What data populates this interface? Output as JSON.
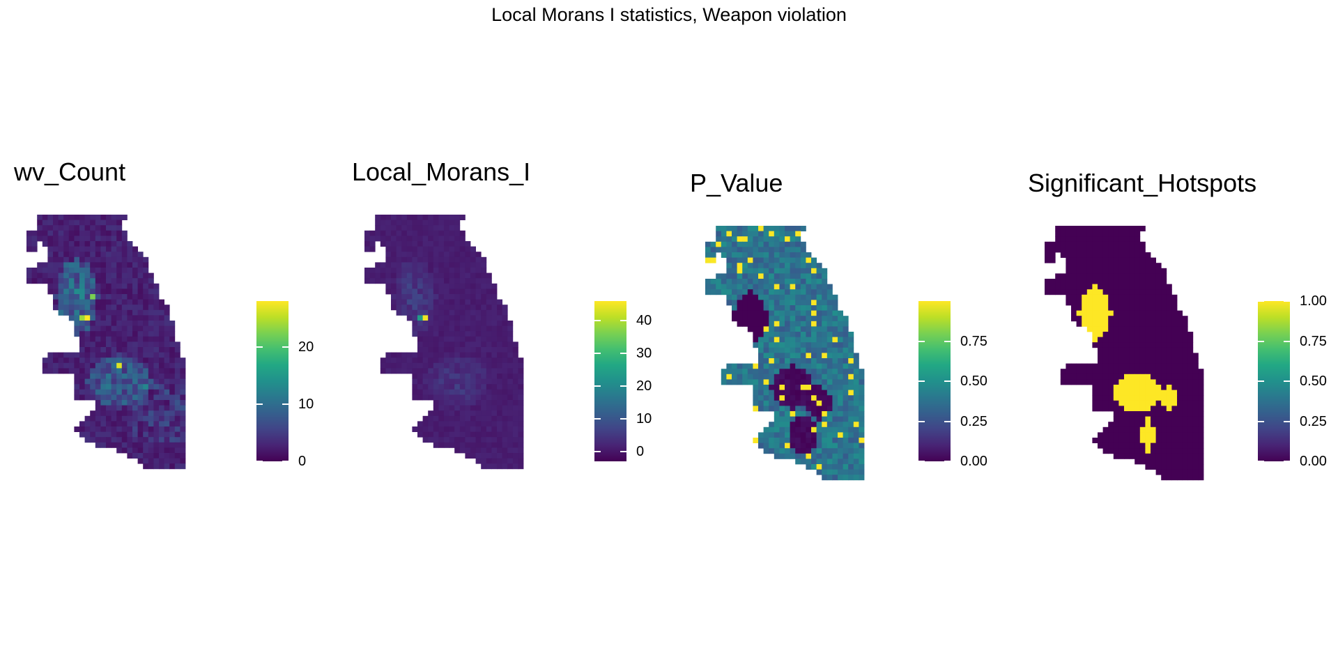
{
  "title": "Local Morans I statistics, Weapon violation",
  "chart_data": [
    {
      "type": "heatmap",
      "title": "wv_Count",
      "colormap": "viridis",
      "range": [
        0,
        28
      ],
      "legend_ticks": [
        "0",
        "10",
        "20"
      ],
      "legend_tick_values": [
        0,
        10,
        20
      ],
      "hotspots": [
        {
          "value": 22,
          "area": "northwest cluster"
        },
        {
          "value": 28,
          "area": "west-central peak"
        },
        {
          "value": 26,
          "area": "south-central peak"
        }
      ]
    },
    {
      "type": "heatmap",
      "title": "Local_Morans_I",
      "colormap": "viridis",
      "range": [
        -3,
        46
      ],
      "legend_ticks": [
        "0",
        "10",
        "20",
        "30",
        "40"
      ],
      "legend_tick_values": [
        0,
        10,
        20,
        30,
        40
      ],
      "hotspots": [
        {
          "value": 44,
          "area": "west-central peak"
        }
      ]
    },
    {
      "type": "heatmap",
      "title": "P_Value",
      "colormap": "viridis",
      "range": [
        0,
        1
      ],
      "legend_ticks": [
        "0.00",
        "0.25",
        "0.50",
        "0.75"
      ],
      "legend_tick_values": [
        0,
        0.25,
        0.5,
        0.75
      ]
    },
    {
      "type": "heatmap",
      "title": "Significant_Hotspots",
      "colormap": "viridis",
      "range": [
        0,
        1
      ],
      "legend_ticks": [
        "0.00",
        "0.25",
        "0.50",
        "0.75",
        "1.00"
      ],
      "legend_tick_values": [
        0,
        0.25,
        0.5,
        0.75,
        1
      ],
      "hotspot_value": 1,
      "background_value": 0
    }
  ],
  "colors": {
    "viridis_low": "#440154",
    "viridis_mid": "#21918c",
    "viridis_high": "#fde725"
  }
}
